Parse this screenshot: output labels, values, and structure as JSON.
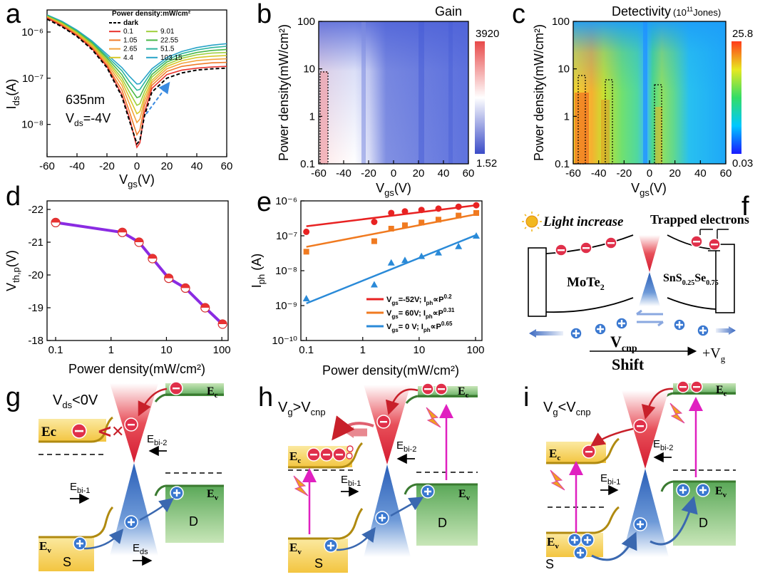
{
  "panels": {
    "a": {
      "label": "a",
      "ylabel": "I",
      "ylabel_sub": "ds",
      "ylabel_unit": "(A)",
      "xlabel": "V",
      "xlabel_sub": "gs",
      "xlabel_unit": "(V)",
      "annotation_wavelength": "635nm",
      "annotation_vds_main": "V",
      "annotation_vds_sub": "ds",
      "annotation_vds_val": "=-4V",
      "legend_title": "Power density:mW/cm²"
    },
    "b": {
      "label": "b",
      "title": "Gain",
      "ylabel": "Power density(mW/cm²)",
      "xlabel": "V",
      "xlabel_sub": "gs",
      "xlabel_unit": "(V)",
      "cbar_max": "3920",
      "cbar_min": "1.52"
    },
    "c": {
      "label": "c",
      "title": "Detectivity",
      "title_unit": "(10",
      "title_exp": "11",
      "title_unit2": "Jones)",
      "ylabel": "Power density(mW/cm²)",
      "xlabel": "V",
      "xlabel_sub": "gs",
      "xlabel_unit": "(V)",
      "cbar_max": "25.8",
      "cbar_min": "0.03"
    },
    "d": {
      "label": "d",
      "ylabel": "V",
      "ylabel_sub": "th,p",
      "ylabel_unit": "(V)",
      "xlabel": "Power density(mW/cm²)"
    },
    "e": {
      "label": "e",
      "ylabel": "I",
      "ylabel_sub": "ph",
      "ylabel_unit": " (A)",
      "xlabel": "Power density(mW/cm²)"
    },
    "f": {
      "label": "f",
      "light": "Light increase",
      "trapped": "Trapped electrons",
      "mote2": "MoTe",
      "mote2_sub": "2",
      "sns": "SnS",
      "sns_sub1": "0.25",
      "sns_se": "Se",
      "sns_sub2": "0.75",
      "vcnp": "V",
      "vcnp_sub": "cnp",
      "vg": "+V",
      "vg_sub": "g",
      "shift": "Shift"
    },
    "g": {
      "label": "g",
      "cond_main": "V",
      "cond_sub": "ds",
      "cond_tail": "<0V",
      "ec_left": "Ec",
      "ec_right": "E",
      "ec_right_sub": "c",
      "ev_left": "E",
      "ev_left_sub": "v",
      "ev_right": "E",
      "ev_right_sub": "v",
      "ebi2": "E",
      "ebi2_sub": "bi-2",
      "ebi1": "E",
      "ebi1_sub": "bi-1",
      "eds": "E",
      "eds_sub": "ds",
      "s": "S",
      "d": "D"
    },
    "h": {
      "label": "h",
      "cond_main": "V",
      "cond_sub": "g",
      "cond_mid": ">V",
      "cond_sub2": "cnp",
      "ec_left": "E",
      "ec_left_sub": "c",
      "ec_right": "E",
      "ec_right_sub": "c",
      "ev_left": "E",
      "ev_left_sub": "v",
      "ev_right": "E",
      "ev_right_sub": "v",
      "ebi2": "E",
      "ebi2_sub": "bi-2",
      "ebi1": "E",
      "ebi1_sub": "bi-1",
      "s": "S",
      "d": "D"
    },
    "i": {
      "label": "i",
      "cond_main": "V",
      "cond_sub": "g",
      "cond_mid": "<V",
      "cond_sub2": "cnp",
      "ec_left": "E",
      "ec_left_sub": "c",
      "ec_right": "E",
      "ec_right_sub": "c",
      "ev_left": "E",
      "ev_left_sub": "v",
      "ev_right": "E",
      "ev_right_sub": "v",
      "ebi2": "E",
      "ebi2_sub": "bi-2",
      "ebi1": "E",
      "ebi1_sub": "bi-1",
      "s": "S",
      "d": "D"
    }
  },
  "colors": {
    "red_band": "#e0304a",
    "blue_band": "#3a78d0",
    "gold": "#f5c842",
    "green": "#7fc06a",
    "magenta": "#e020c0"
  },
  "chart_data": [
    {
      "panel": "a",
      "type": "line",
      "x_label": "Vgs (V)",
      "y_label": "Ids (A)",
      "y_scale": "log",
      "xlim": [
        -60,
        60
      ],
      "ylim": [
        2e-09,
        3e-06
      ],
      "xticks": [
        -60,
        -40,
        -20,
        0,
        20,
        40,
        60
      ],
      "xtick_labels": [
        "-60",
        "-40",
        "-20",
        "0",
        "20",
        "40",
        "60"
      ],
      "yticks": [
        1e-08,
        1e-07,
        1e-06
      ],
      "ytick_labels": [
        "10⁻⁸",
        "10⁻⁷",
        "10⁻⁶"
      ],
      "x": [
        -60,
        -50,
        -40,
        -30,
        -20,
        -10,
        -5,
        0,
        2,
        5,
        10,
        20,
        30,
        40,
        50,
        60
      ],
      "series": [
        {
          "name": "dark",
          "color": "#000000",
          "dash": true,
          "values": [
            1.9e-06,
            1.3e-06,
            8e-07,
            4.2e-07,
            1.7e-07,
            4e-08,
            1.2e-08,
            3.8e-09,
            4.5e-09,
            1.5e-08,
            5e-08,
            1e-07,
            1.3e-07,
            1.5e-07,
            1.6e-07,
            1.65e-07
          ]
        },
        {
          "name": "0.1",
          "color": "#e8312b",
          "values": [
            2e-06,
            1.35e-06,
            8.3e-07,
            4.4e-07,
            1.8e-07,
            4.4e-08,
            1.4e-08,
            3.2e-09,
            4e-09,
            1.8e-08,
            6e-08,
            1.2e-07,
            1.5e-07,
            1.65e-07,
            1.75e-07,
            1.8e-07
          ]
        },
        {
          "name": "1.05",
          "color": "#f07b2a",
          "values": [
            2.05e-06,
            1.4e-06,
            8.6e-07,
            4.6e-07,
            1.9e-07,
            5.5e-08,
            1.9e-08,
            6e-09,
            7.5e-09,
            2.5e-08,
            7e-08,
            1.4e-07,
            1.8e-07,
            2e-07,
            2.15e-07,
            2.2e-07
          ]
        },
        {
          "name": "2.65",
          "color": "#f3a23c",
          "values": [
            2.1e-06,
            1.45e-06,
            9e-07,
            4.9e-07,
            2.1e-07,
            7e-08,
            2.8e-08,
            1.1e-08,
            1.3e-08,
            3.2e-08,
            8e-08,
            1.6e-07,
            2.1e-07,
            2.4e-07,
            2.55e-07,
            2.65e-07
          ]
        },
        {
          "name": "4.4",
          "color": "#d7c829",
          "values": [
            2.15e-06,
            1.5e-06,
            9.4e-07,
            5.2e-07,
            2.3e-07,
            8.5e-08,
            3.8e-08,
            1.7e-08,
            1.9e-08,
            4e-08,
            9e-08,
            1.8e-07,
            2.4e-07,
            2.8e-07,
            3e-07,
            3.1e-07
          ]
        },
        {
          "name": "9.01",
          "color": "#9fcf3a",
          "values": [
            2.2e-06,
            1.55e-06,
            9.8e-07,
            5.5e-07,
            2.5e-07,
            1e-07,
            5e-08,
            2.6e-08,
            2.8e-08,
            5e-08,
            1.05e-07,
            2e-07,
            2.7e-07,
            3.2e-07,
            3.5e-07,
            3.6e-07
          ]
        },
        {
          "name": "22.55",
          "color": "#49b848",
          "values": [
            2.25e-06,
            1.6e-06,
            1.02e-06,
            5.8e-07,
            2.75e-07,
            1.2e-07,
            6.5e-08,
            3.8e-08,
            4e-08,
            6.3e-08,
            1.2e-07,
            2.25e-07,
            3e-07,
            3.6e-07,
            4e-07,
            4.2e-07
          ]
        },
        {
          "name": "51.5",
          "color": "#2bb59d",
          "values": [
            2.3e-06,
            1.65e-06,
            1.06e-06,
            6.1e-07,
            3e-07,
            1.45e-07,
            8.5e-08,
            5.5e-08,
            5.7e-08,
            8e-08,
            1.4e-07,
            2.5e-07,
            3.4e-07,
            4.1e-07,
            4.6e-07,
            4.9e-07
          ]
        },
        {
          "name": "103.15",
          "color": "#28a3c8",
          "values": [
            2.35e-06,
            1.7e-06,
            1.1e-06,
            6.4e-07,
            3.3e-07,
            1.7e-07,
            1.1e-07,
            7.5e-08,
            7.6e-08,
            1e-07,
            1.6e-07,
            2.8e-07,
            3.8e-07,
            4.6e-07,
            5.2e-07,
            5.6e-07
          ]
        }
      ]
    },
    {
      "panel": "b",
      "type": "heatmap",
      "title": "Gain",
      "x_label": "Vgs (V)",
      "y_label": "Power density (mW/cm²)",
      "y_scale": "log",
      "xlim": [
        -60,
        60
      ],
      "ylim": [
        0.1,
        100
      ],
      "xticks": [
        -60,
        -40,
        -20,
        0,
        20,
        40,
        60
      ],
      "xtick_labels": [
        "-60",
        "-40",
        "-20",
        "0",
        "20",
        "40",
        "60"
      ],
      "yticks": [
        0.1,
        1,
        10,
        100
      ],
      "ytick_labels": [
        "0.1",
        "1",
        "10",
        "100"
      ],
      "colorbar": {
        "min": 1.52,
        "max": 3920,
        "colors": [
          "#3b4cc8",
          "#ffffff",
          "#e84a4a"
        ]
      },
      "highlight_regions": [
        {
          "x": [
            -58,
            -52
          ],
          "y": [
            0.1,
            8
          ]
        }
      ]
    },
    {
      "panel": "c",
      "type": "heatmap",
      "title": "Detectivity (10^11 Jones)",
      "x_label": "Vgs (V)",
      "y_label": "Power density (mW/cm²)",
      "y_scale": "log",
      "xlim": [
        -60,
        60
      ],
      "ylim": [
        0.1,
        100
      ],
      "xticks": [
        -60,
        -40,
        -20,
        0,
        20,
        40,
        60
      ],
      "xtick_labels": [
        "-60",
        "-40",
        "-20",
        "0",
        "20",
        "40",
        "60"
      ],
      "yticks": [
        0.1,
        1,
        10,
        100
      ],
      "ytick_labels": [
        "0.1",
        "1",
        "10",
        "100"
      ],
      "colorbar": {
        "min": 0.03,
        "max": 25.8,
        "colors": [
          "#1a1aff",
          "#00c8ff",
          "#33dd66",
          "#e8e820",
          "#ff3a1a"
        ]
      },
      "highlight_regions": [
        {
          "x": [
            -56,
            -50
          ],
          "y": [
            0.1,
            7
          ]
        },
        {
          "x": [
            -34,
            -29
          ],
          "y": [
            0.1,
            5
          ]
        },
        {
          "x": [
            6,
            12
          ],
          "y": [
            0.1,
            4
          ]
        }
      ]
    },
    {
      "panel": "d",
      "type": "line",
      "x_label": "Power density (mW/cm²)",
      "y_label": "Vth,p (V)",
      "x_scale": "log",
      "xlim": [
        0.07,
        130
      ],
      "ylim": [
        -22,
        -18
      ],
      "xticks": [
        0.1,
        1,
        10,
        100
      ],
      "xtick_labels": [
        "0.1",
        "1",
        "10",
        "100"
      ],
      "yticks": [
        -22,
        -21,
        -20,
        -19,
        -18
      ],
      "ytick_labels": [
        "-22",
        "-21",
        "-20",
        "-19",
        "-18"
      ],
      "y_inverted": true,
      "x": [
        0.1,
        1.6,
        3.2,
        5.6,
        11,
        22,
        50,
        103
      ],
      "values": [
        -21.6,
        -21.3,
        -21.0,
        -20.5,
        -19.9,
        -19.6,
        -19.0,
        -18.5
      ]
    },
    {
      "panel": "e",
      "type": "scatter",
      "x_label": "Power density (mW/cm²)",
      "y_label": "Iph (A)",
      "x_scale": "log",
      "y_scale": "log",
      "xlim": [
        0.08,
        130
      ],
      "ylim": [
        1e-10,
        1e-06
      ],
      "xticks": [
        0.1,
        1,
        10,
        100
      ],
      "xtick_labels": [
        "0.1",
        "1",
        "10",
        "100"
      ],
      "yticks": [
        1e-10,
        1e-09,
        1e-08,
        1e-07,
        1e-06
      ],
      "ytick_labels": [
        "10⁻¹⁰",
        "10⁻⁹",
        "10⁻⁸",
        "10⁻⁷",
        "10⁻⁶"
      ],
      "series": [
        {
          "name": "Vgs=-52V; Iph∝P^0.2",
          "label_main": "V",
          "label_sub": "gs",
          "label_rest": "=-52V; I",
          "label_ph": "ph",
          "label_prop": "∝P",
          "label_exp": "0.2",
          "color": "#e82222",
          "marker": "circle",
          "x": [
            0.1,
            1.6,
            3.2,
            5.6,
            11,
            22,
            50,
            103
          ],
          "values": [
            1.3e-07,
            2.5e-07,
            4.5e-07,
            5e-07,
            5.5e-07,
            6e-07,
            6.8e-07,
            7.5e-07
          ],
          "fit_exponent": 0.2
        },
        {
          "name": "Vgs= 60V; Iph∝P^0.31",
          "label_main": "V",
          "label_sub": "gs",
          "label_rest": "= 60V; I",
          "label_ph": "ph",
          "label_prop": "∝P",
          "label_exp": "0.31",
          "color": "#f07a20",
          "marker": "square",
          "x": [
            0.1,
            1.6,
            3.2,
            5.6,
            11,
            22,
            50,
            103
          ],
          "values": [
            3.5e-08,
            7e-08,
            1.6e-07,
            2e-07,
            2.4e-07,
            2.9e-07,
            3.8e-07,
            4.5e-07
          ],
          "fit_exponent": 0.31
        },
        {
          "name": "Vgs= 0 V; Iph∝P^0.65",
          "label_main": "V",
          "label_sub": "gs",
          "label_rest": "=  0 V; I",
          "label_ph": "ph",
          "label_prop": "∝P",
          "label_exp": "0.65",
          "color": "#2a8ad8",
          "marker": "triangle",
          "x": [
            0.1,
            1.6,
            3.2,
            5.6,
            11,
            22,
            50,
            103
          ],
          "values": [
            1.6e-09,
            4e-09,
            1.7e-08,
            2e-08,
            2.6e-08,
            3.3e-08,
            5e-08,
            1e-07
          ],
          "fit_exponent": 0.65
        }
      ]
    }
  ]
}
